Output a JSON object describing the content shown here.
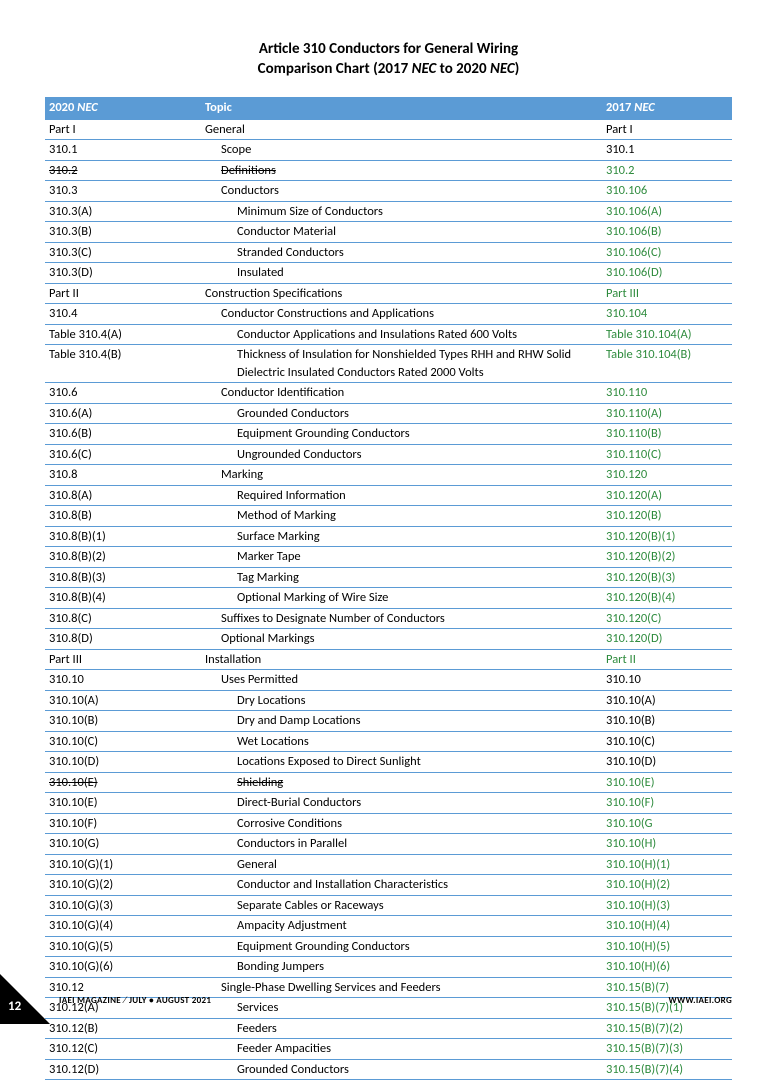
{
  "title": {
    "line1": "Article 310 Conductors for General Wiring",
    "line2_prefix": "Comparison Chart  (2017 ",
    "line2_em1": "NEC",
    "line2_mid": " to 2020 ",
    "line2_em2": "NEC",
    "line2_suffix": ")"
  },
  "header": {
    "col1_prefix": "2020 ",
    "col1_em": "NEC",
    "col2": "Topic",
    "col3_prefix": "2017 ",
    "col3_em": "NEC"
  },
  "rows": [
    {
      "c1": "Part I",
      "c2": "General",
      "c3": "Part I",
      "i": 1,
      "s": false,
      "g": false
    },
    {
      "c1": "310.1",
      "c2": "Scope",
      "c3": "310.1",
      "i": 2,
      "s": false,
      "g": false
    },
    {
      "c1": "310.2",
      "c2": "Definitions",
      "c3": "310.2",
      "i": 2,
      "s": true,
      "g": true
    },
    {
      "c1": "310.3",
      "c2": "Conductors",
      "c3": "310.106",
      "i": 2,
      "s": false,
      "g": true
    },
    {
      "c1": "310.3(A)",
      "c2": "Minimum Size of Conductors",
      "c3": "310.106(A)",
      "i": 3,
      "s": false,
      "g": true
    },
    {
      "c1": "310.3(B)",
      "c2": "Conductor Material",
      "c3": "310.106(B)",
      "i": 3,
      "s": false,
      "g": true
    },
    {
      "c1": "310.3(C)",
      "c2": "Stranded Conductors",
      "c3": "310.106(C)",
      "i": 3,
      "s": false,
      "g": true
    },
    {
      "c1": "310.3(D)",
      "c2": "Insulated",
      "c3": "310.106(D)",
      "i": 3,
      "s": false,
      "g": true
    },
    {
      "c1": "Part II",
      "c2": "Construction Specifications",
      "c3": "Part III",
      "i": 1,
      "s": false,
      "g": true
    },
    {
      "c1": "310.4",
      "c2": "Conductor Constructions and Applications",
      "c3": "310.104",
      "i": 2,
      "s": false,
      "g": true
    },
    {
      "c1": "Table 310.4(A)",
      "c2": "Conductor Applications and Insulations Rated 600 Volts",
      "c3": "Table 310.104(A)",
      "i": 3,
      "s": false,
      "g": true
    },
    {
      "c1": "Table 310.4(B)",
      "c2": "Thickness of Insulation for Nonshielded Types RHH and RHW Solid Dielectric Insulated Conductors Rated 2000 Volts",
      "c3": "Table 310.104(B)",
      "i": 3,
      "s": false,
      "g": true
    },
    {
      "c1": "310.6",
      "c2": "Conductor Identification",
      "c3": "310.110",
      "i": 2,
      "s": false,
      "g": true
    },
    {
      "c1": "310.6(A)",
      "c2": "Grounded Conductors",
      "c3": "310.110(A)",
      "i": 3,
      "s": false,
      "g": true
    },
    {
      "c1": "310.6(B)",
      "c2": "Equipment Grounding Conductors",
      "c3": "310.110(B)",
      "i": 3,
      "s": false,
      "g": true
    },
    {
      "c1": "310.6(C)",
      "c2": "Ungrounded Conductors",
      "c3": "310.110(C)",
      "i": 3,
      "s": false,
      "g": true
    },
    {
      "c1": "310.8",
      "c2": "Marking",
      "c3": "310.120",
      "i": 2,
      "s": false,
      "g": true
    },
    {
      "c1": "310.8(A)",
      "c2": "Required Information",
      "c3": "310.120(A)",
      "i": 3,
      "s": false,
      "g": true
    },
    {
      "c1": "310.8(B)",
      "c2": "Method of Marking",
      "c3": "310.120(B)",
      "i": 3,
      "s": false,
      "g": true
    },
    {
      "c1": "310.8(B)(1)",
      "c2": "Surface Marking",
      "c3": "310.120(B)(1)",
      "i": 3,
      "s": false,
      "g": true
    },
    {
      "c1": "310.8(B)(2)",
      "c2": "Marker Tape",
      "c3": "310.120(B)(2)",
      "i": 3,
      "s": false,
      "g": true
    },
    {
      "c1": "310.8(B)(3)",
      "c2": "Tag Marking",
      "c3": "310.120(B)(3)",
      "i": 3,
      "s": false,
      "g": true
    },
    {
      "c1": "310.8(B)(4)",
      "c2": "Optional Marking of Wire Size",
      "c3": "310.120(B)(4)",
      "i": 3,
      "s": false,
      "g": true
    },
    {
      "c1": "310.8(C)",
      "c2": "Suffixes to Designate Number of Conductors",
      "c3": "310.120(C)",
      "i": 2,
      "s": false,
      "g": true
    },
    {
      "c1": "310.8(D)",
      "c2": "Optional Markings",
      "c3": "310.120(D)",
      "i": 2,
      "s": false,
      "g": true
    },
    {
      "c1": "Part III",
      "c2": "Installation",
      "c3": "Part II",
      "i": 1,
      "s": false,
      "g": true
    },
    {
      "c1": "310.10",
      "c2": "Uses Permitted",
      "c3": "310.10",
      "i": 2,
      "s": false,
      "g": false
    },
    {
      "c1": "310.10(A)",
      "c2": "Dry Locations",
      "c3": "310.10(A)",
      "i": 3,
      "s": false,
      "g": false
    },
    {
      "c1": "310.10(B)",
      "c2": "Dry and Damp Locations",
      "c3": "310.10(B)",
      "i": 3,
      "s": false,
      "g": false
    },
    {
      "c1": "310.10(C)",
      "c2": "Wet Locations",
      "c3": "310.10(C)",
      "i": 3,
      "s": false,
      "g": false
    },
    {
      "c1": "310.10(D)",
      "c2": "Locations Exposed to Direct Sunlight",
      "c3": "310.10(D)",
      "i": 3,
      "s": false,
      "g": false
    },
    {
      "c1": "310.10(E)",
      "c2": "Shielding",
      "c3": "310.10(E)",
      "i": 3,
      "s": true,
      "g": true
    },
    {
      "c1": "310.10(E)",
      "c2": "Direct-Burial Conductors",
      "c3": "310.10(F)",
      "i": 3,
      "s": false,
      "g": true
    },
    {
      "c1": "310.10(F)",
      "c2": "Corrosive Conditions",
      "c3": "310.10(G",
      "i": 3,
      "s": false,
      "g": true
    },
    {
      "c1": "310.10(G)",
      "c2": "Conductors in Parallel",
      "c3": "310.10(H)",
      "i": 3,
      "s": false,
      "g": true
    },
    {
      "c1": "310.10(G)(1)",
      "c2": "General",
      "c3": "310.10(H)(1)",
      "i": 3,
      "s": false,
      "g": true
    },
    {
      "c1": "310.10(G)(2)",
      "c2": "Conductor and Installation Characteristics",
      "c3": "310.10(H)(2)",
      "i": 3,
      "s": false,
      "g": true
    },
    {
      "c1": "310.10(G)(3)",
      "c2": "Separate Cables or Raceways",
      "c3": "310.10(H)(3)",
      "i": 3,
      "s": false,
      "g": true
    },
    {
      "c1": "310.10(G)(4)",
      "c2": "Ampacity Adjustment",
      "c3": "310.10(H)(4)",
      "i": 3,
      "s": false,
      "g": true
    },
    {
      "c1": "310.10(G)(5)",
      "c2": "Equipment Grounding Conductors",
      "c3": "310.10(H)(5)",
      "i": 3,
      "s": false,
      "g": true
    },
    {
      "c1": "310.10(G)(6)",
      "c2": "Bonding Jumpers",
      "c3": "310.10(H)(6)",
      "i": 3,
      "s": false,
      "g": true
    },
    {
      "c1": "310.12",
      "c2": "Single-Phase Dwelling Services and Feeders",
      "c3": "310.15(B)(7)",
      "i": 2,
      "s": false,
      "g": true
    },
    {
      "c1": "310.12(A)",
      "c2": "Services",
      "c3": "310.15(B)(7)(1)",
      "i": 3,
      "s": false,
      "g": true
    },
    {
      "c1": "310.12(B)",
      "c2": "Feeders",
      "c3": "310.15(B)(7)(2)",
      "i": 3,
      "s": false,
      "g": true
    },
    {
      "c1": "310.12(C)",
      "c2": "Feeder Ampacities",
      "c3": "310.15(B)(7)(3)",
      "i": 3,
      "s": false,
      "g": true
    },
    {
      "c1": "310.12(D)",
      "c2": "Grounded Conductors",
      "c3": "310.15(B)(7)(4)",
      "i": 3,
      "s": false,
      "g": true
    }
  ],
  "footer": {
    "page": "12",
    "mag": "IAEI MAGAZINE",
    "slash": "⁄",
    "issue": "JULY • AUGUST 2021",
    "url": "WWW.IAEI.ORG"
  },
  "colors": {
    "header_bg": "#5b9bd5",
    "green": "#2e8b3d",
    "border": "#5b9bd5"
  }
}
